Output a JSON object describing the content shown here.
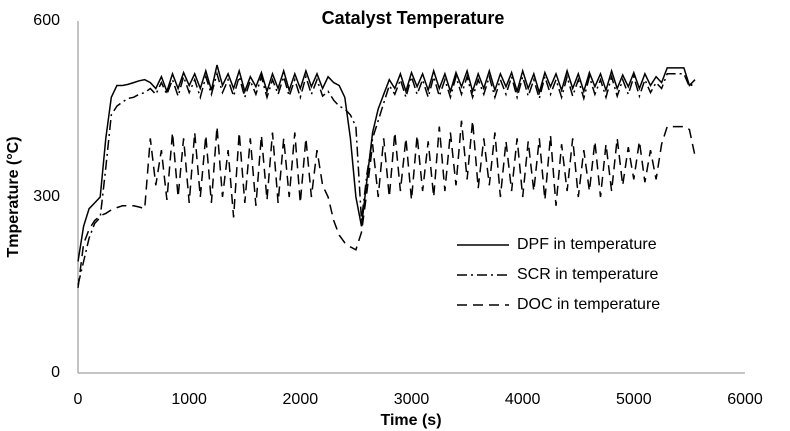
{
  "chart_data": {
    "type": "line",
    "title": "Catalyst Temperature",
    "x_label": "Time (s)",
    "y_label": "Tmperature (°C)",
    "xlim": [
      0,
      6000
    ],
    "xticks": [
      0,
      1000,
      2000,
      3000,
      4000,
      5000,
      6000
    ],
    "ylim": [
      0,
      600
    ],
    "yticks": [
      0,
      300,
      600
    ],
    "grid": false,
    "legend": "center-right",
    "x": [
      0,
      50,
      100,
      150,
      200,
      250,
      300,
      350,
      400,
      450,
      500,
      550,
      600,
      650,
      700,
      750,
      800,
      850,
      900,
      950,
      1000,
      1050,
      1100,
      1150,
      1200,
      1250,
      1300,
      1350,
      1400,
      1450,
      1500,
      1550,
      1600,
      1650,
      1700,
      1750,
      1800,
      1850,
      1900,
      1950,
      2000,
      2050,
      2100,
      2150,
      2200,
      2250,
      2300,
      2350,
      2400,
      2450,
      2500,
      2550,
      2600,
      2650,
      2700,
      2750,
      2800,
      2850,
      2900,
      2950,
      3000,
      3050,
      3100,
      3150,
      3200,
      3250,
      3300,
      3350,
      3400,
      3450,
      3500,
      3550,
      3600,
      3650,
      3700,
      3750,
      3800,
      3850,
      3900,
      3950,
      4000,
      4050,
      4100,
      4150,
      4200,
      4250,
      4300,
      4350,
      4400,
      4450,
      4500,
      4550,
      4600,
      4650,
      4700,
      4750,
      4800,
      4850,
      4900,
      4950,
      5000,
      5050,
      5100,
      5150,
      5200,
      5250,
      5300,
      5350,
      5400,
      5450,
      5500,
      5550
    ],
    "series": [
      {
        "name": "DPF in temperature",
        "color": "#000000",
        "style": "solid",
        "values": [
          190,
          250,
          280,
          290,
          300,
          400,
          470,
          490,
          490,
          492,
          495,
          498,
          500,
          495,
          485,
          505,
          480,
          510,
          485,
          512,
          490,
          510,
          485,
          515,
          482,
          525,
          490,
          510,
          485,
          515,
          480,
          505,
          488,
          512,
          480,
          510,
          485,
          515,
          482,
          510,
          485,
          515,
          488,
          510,
          485,
          505,
          495,
          490,
          470,
          400,
          300,
          250,
          330,
          410,
          450,
          475,
          500,
          485,
          510,
          480,
          512,
          488,
          510,
          482,
          515,
          485,
          510,
          480,
          512,
          488,
          515,
          480,
          510,
          485,
          515,
          482,
          510,
          488,
          512,
          480,
          515,
          485,
          510,
          478,
          512,
          488,
          510,
          482,
          515,
          485,
          510,
          480,
          512,
          488,
          510,
          482,
          515,
          485,
          508,
          488,
          512,
          485,
          510,
          490,
          505,
          495,
          520,
          520,
          520,
          520,
          490,
          500
        ]
      },
      {
        "name": "SCR in temperature",
        "color": "#000000",
        "style": "dashdot",
        "values": [
          150,
          190,
          230,
          255,
          265,
          350,
          440,
          455,
          462,
          468,
          470,
          475,
          478,
          485,
          475,
          495,
          475,
          500,
          472,
          505,
          478,
          500,
          470,
          505,
          475,
          510,
          478,
          500,
          472,
          505,
          470,
          498,
          475,
          505,
          470,
          500,
          475,
          505,
          472,
          500,
          470,
          505,
          475,
          500,
          472,
          480,
          465,
          455,
          450,
          440,
          420,
          260,
          340,
          400,
          430,
          460,
          490,
          475,
          500,
          470,
          505,
          475,
          500,
          470,
          505,
          472,
          500,
          470,
          505,
          475,
          505,
          470,
          500,
          475,
          505,
          470,
          500,
          475,
          505,
          470,
          505,
          472,
          500,
          468,
          505,
          475,
          500,
          470,
          505,
          472,
          500,
          468,
          505,
          475,
          500,
          470,
          505,
          472,
          500,
          475,
          505,
          472,
          500,
          478,
          495,
          485,
          510,
          510,
          510,
          510,
          488,
          495
        ]
      },
      {
        "name": "DOC in temperature",
        "color": "#000000",
        "style": "dashed",
        "values": [
          145,
          220,
          245,
          260,
          268,
          272,
          278,
          282,
          285,
          285,
          285,
          283,
          280,
          400,
          320,
          380,
          295,
          410,
          300,
          400,
          290,
          410,
          300,
          405,
          290,
          420,
          300,
          380,
          265,
          410,
          290,
          400,
          285,
          405,
          295,
          410,
          290,
          400,
          300,
          410,
          290,
          400,
          300,
          380,
          320,
          300,
          260,
          235,
          222,
          215,
          210,
          240,
          310,
          390,
          300,
          400,
          300,
          410,
          310,
          400,
          295,
          405,
          310,
          395,
          300,
          420,
          310,
          410,
          320,
          430,
          330,
          430,
          315,
          400,
          320,
          410,
          300,
          395,
          310,
          400,
          300,
          395,
          310,
          400,
          295,
          405,
          285,
          390,
          310,
          400,
          300,
          380,
          310,
          395,
          300,
          390,
          310,
          400,
          320,
          385,
          330,
          395,
          325,
          380,
          330,
          390,
          420,
          420,
          420,
          420,
          415,
          370
        ]
      }
    ]
  }
}
